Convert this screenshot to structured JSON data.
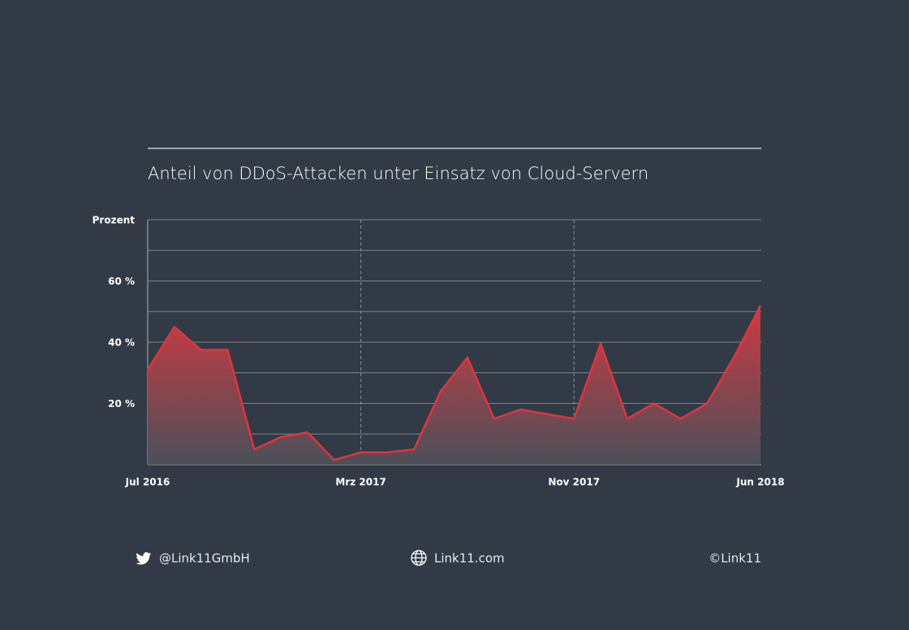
{
  "chart_data": {
    "type": "area",
    "title": "Anteil von DDoS-Attacken unter Einsatz von Cloud-Servern",
    "y_label": "Prozent",
    "categories": [
      "Jul 2016",
      null,
      null,
      null,
      null,
      null,
      null,
      null,
      "Mrz 2017",
      null,
      null,
      null,
      null,
      null,
      null,
      null,
      "Nov 2017",
      null,
      null,
      null,
      null,
      null,
      null,
      "Jun 2018"
    ],
    "values": [
      31,
      45,
      37.5,
      37.5,
      5,
      9,
      10.5,
      1.5,
      4,
      4,
      5,
      24,
      35,
      15,
      18,
      16.5,
      15,
      39.5,
      15,
      20,
      15,
      20,
      35,
      52
    ],
    "color": "#e4323d",
    "ylim": [
      0,
      80
    ],
    "yticks": [
      {
        "value": 20,
        "label": "20 %"
      },
      {
        "value": 40,
        "label": "40 %"
      },
      {
        "value": 60,
        "label": "60 %"
      }
    ],
    "ygrid": [
      0,
      10,
      20,
      30,
      40,
      50,
      60,
      70,
      80
    ]
  },
  "footer": {
    "twitter": "@Link11GmbH",
    "website": "Link11.com",
    "copyright": "©Link11"
  }
}
